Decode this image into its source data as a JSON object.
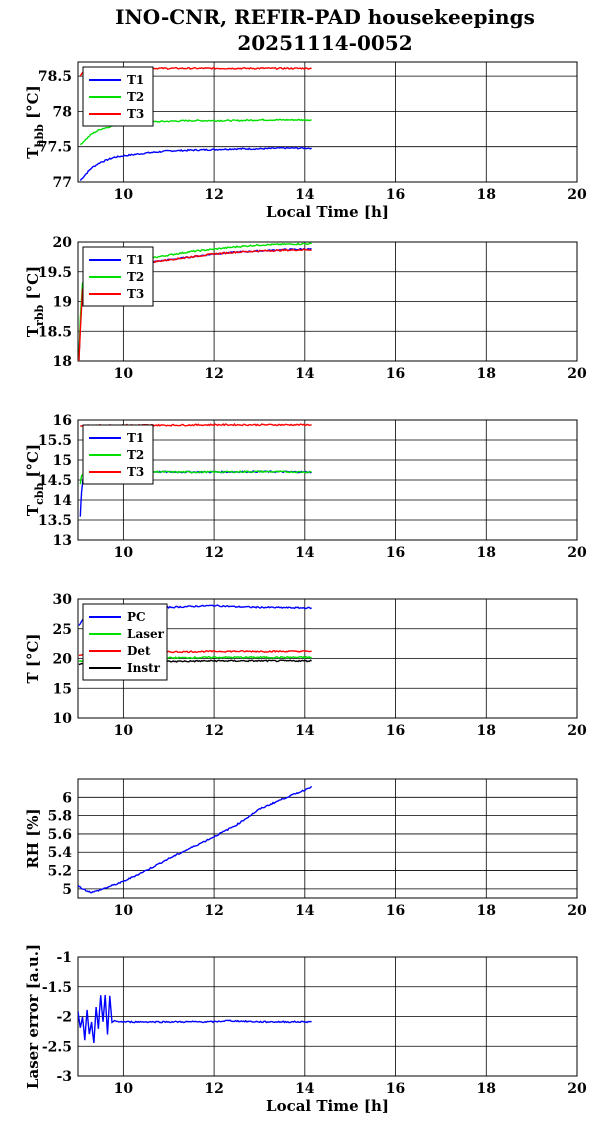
{
  "title_line1": "INO-CNR, REFIR-PAD housekeepings",
  "title_line2": "20251114-0052",
  "colors": {
    "T1": "#0000ff",
    "T2": "#00e000",
    "T3": "#ff0000",
    "PC": "#0000ff",
    "Laser": "#00e000",
    "Det": "#ff0000",
    "Instr": "#000000",
    "grid": "#000000"
  },
  "chart_data": [
    {
      "type": "line",
      "ylabel": "T_hbb [°C]",
      "ylabel_main": "T",
      "ylabel_sub": "hbb",
      "ylabel_unit": "[°C]",
      "xlabel": "Local Time [h]",
      "xlim": [
        9,
        20
      ],
      "ylim": [
        77,
        78.7
      ],
      "xticks": [
        "10",
        "12",
        "14",
        "16",
        "18",
        "20"
      ],
      "yticks": [
        "77",
        "77.5",
        "78",
        "78.5"
      ],
      "legend": "top-left",
      "series": [
        {
          "name": "T1",
          "x": [
            9.05,
            9.1,
            9.3,
            9.5,
            9.8,
            10,
            10.5,
            11,
            11.5,
            12,
            12.5,
            13,
            13.5,
            14,
            14.15
          ],
          "y": [
            77.02,
            77.06,
            77.2,
            77.28,
            77.35,
            77.37,
            77.41,
            77.44,
            77.45,
            77.46,
            77.47,
            77.47,
            77.48,
            77.48,
            77.48
          ]
        },
        {
          "name": "T2",
          "x": [
            9.05,
            9.1,
            9.3,
            9.5,
            9.8,
            10,
            10.5,
            11,
            11.5,
            12,
            12.5,
            13,
            13.5,
            14,
            14.15
          ],
          "y": [
            77.52,
            77.56,
            77.68,
            77.75,
            77.8,
            77.82,
            77.85,
            77.86,
            77.87,
            77.87,
            77.87,
            77.88,
            77.88,
            77.88,
            77.88
          ]
        },
        {
          "name": "T3",
          "x": [
            9.05,
            9.1,
            9.3,
            9.5,
            9.8,
            10,
            10.5,
            11,
            11.5,
            12,
            12.5,
            13,
            13.5,
            14,
            14.15
          ],
          "y": [
            78.5,
            78.56,
            78.58,
            78.59,
            78.6,
            78.6,
            78.61,
            78.61,
            78.61,
            78.61,
            78.61,
            78.61,
            78.61,
            78.61,
            78.61
          ]
        }
      ]
    },
    {
      "type": "line",
      "ylabel": "T_rbb [°C]",
      "ylabel_main": "T",
      "ylabel_sub": "rbb",
      "ylabel_unit": "[°C]",
      "xlabel": "",
      "xlim": [
        9,
        20
      ],
      "ylim": [
        18,
        20
      ],
      "xticks": [
        "10",
        "12",
        "14",
        "16",
        "18",
        "20"
      ],
      "yticks": [
        "18",
        "18.5",
        "19",
        "19.5",
        "20"
      ],
      "legend": "top-left",
      "series": [
        {
          "name": "T1",
          "x": [
            9.02,
            9.05,
            9.1,
            9.2,
            9.4,
            9.6,
            10,
            10.5,
            11,
            11.5,
            12,
            12.5,
            13,
            13.5,
            14,
            14.15
          ],
          "y": [
            18.0,
            18.6,
            19.2,
            19.4,
            19.5,
            19.55,
            19.6,
            19.65,
            19.7,
            19.75,
            19.8,
            19.83,
            19.85,
            19.87,
            19.88,
            19.88
          ]
        },
        {
          "name": "T2",
          "x": [
            9.02,
            9.05,
            9.1,
            9.2,
            9.4,
            9.6,
            10,
            10.5,
            11,
            11.5,
            12,
            12.5,
            13,
            13.5,
            14,
            14.15
          ],
          "y": [
            18.0,
            18.7,
            19.3,
            19.45,
            19.55,
            19.6,
            19.65,
            19.72,
            19.78,
            19.84,
            19.88,
            19.92,
            19.95,
            19.96,
            19.97,
            19.97
          ]
        },
        {
          "name": "T3",
          "x": [
            9.02,
            9.05,
            9.1,
            9.2,
            9.4,
            9.6,
            10,
            10.5,
            11,
            11.5,
            12,
            12.5,
            13,
            13.5,
            14,
            14.15
          ],
          "y": [
            18.0,
            18.5,
            19.2,
            19.4,
            19.5,
            19.55,
            19.6,
            19.65,
            19.7,
            19.75,
            19.8,
            19.83,
            19.85,
            19.86,
            19.87,
            19.87
          ]
        }
      ]
    },
    {
      "type": "line",
      "ylabel": "T_cbb [°C]",
      "ylabel_main": "T",
      "ylabel_sub": "cbb",
      "ylabel_unit": "[°C]",
      "xlabel": "",
      "xlim": [
        9,
        20
      ],
      "ylim": [
        13,
        16
      ],
      "xticks": [
        "10",
        "12",
        "14",
        "16",
        "18",
        "20"
      ],
      "yticks": [
        "13",
        "13.5",
        "14",
        "14.5",
        "15",
        "15.5",
        "16"
      ],
      "legend": "top-left",
      "series": [
        {
          "name": "T1",
          "x": [
            9.05,
            9.08,
            9.12,
            9.2,
            9.4,
            10,
            11,
            12,
            13,
            14,
            14.15
          ],
          "y": [
            13.6,
            14.2,
            14.6,
            14.65,
            14.7,
            14.72,
            14.7,
            14.7,
            14.71,
            14.7,
            14.7
          ]
        },
        {
          "name": "T2",
          "x": [
            9.05,
            9.08,
            9.12,
            9.2,
            9.4,
            10,
            11,
            12,
            13,
            14,
            14.15
          ],
          "y": [
            14.4,
            14.6,
            14.68,
            14.7,
            14.71,
            14.72,
            14.7,
            14.7,
            14.71,
            14.7,
            14.7
          ]
        },
        {
          "name": "T3",
          "x": [
            9.05,
            9.1,
            9.3,
            10,
            11,
            12,
            13,
            14,
            14.15
          ],
          "y": [
            15.85,
            15.86,
            15.86,
            15.87,
            15.87,
            15.88,
            15.88,
            15.88,
            15.88
          ]
        }
      ]
    },
    {
      "type": "line",
      "ylabel": "T [°C]",
      "ylabel_main": "T",
      "ylabel_sub": "",
      "ylabel_unit": "[°C]",
      "xlabel": "",
      "xlim": [
        9,
        20
      ],
      "ylim": [
        10,
        30
      ],
      "xticks": [
        "10",
        "12",
        "14",
        "16",
        "18",
        "20"
      ],
      "yticks": [
        "10",
        "15",
        "20",
        "25",
        "30"
      ],
      "legend": "top-left",
      "series": [
        {
          "name": "PC",
          "x": [
            9.02,
            9.2,
            9.5,
            10,
            11,
            12,
            12.5,
            13,
            14,
            14.15
          ],
          "y": [
            25.5,
            27.5,
            28.2,
            28.5,
            28.6,
            28.9,
            28.7,
            28.6,
            28.5,
            28.5
          ]
        },
        {
          "name": "Laser",
          "x": [
            9.02,
            9.3,
            10,
            11,
            12,
            13,
            14,
            14.15
          ],
          "y": [
            19.5,
            19.8,
            20.0,
            20.1,
            20.2,
            20.2,
            20.2,
            20.2
          ]
        },
        {
          "name": "Det",
          "x": [
            9.02,
            9.3,
            10,
            11,
            12,
            13,
            14,
            14.15
          ],
          "y": [
            20.5,
            20.8,
            21.0,
            21.1,
            21.2,
            21.2,
            21.2,
            21.2
          ]
        },
        {
          "name": "Instr",
          "x": [
            9.02,
            9.3,
            10,
            11,
            12,
            13,
            14,
            14.15
          ],
          "y": [
            19.0,
            19.2,
            19.4,
            19.5,
            19.6,
            19.6,
            19.6,
            19.6
          ]
        }
      ]
    },
    {
      "type": "line",
      "ylabel": "RH [%]",
      "ylabel_main": "RH",
      "ylabel_sub": "",
      "ylabel_unit": "[%]",
      "xlabel": "",
      "xlim": [
        9,
        20
      ],
      "ylim": [
        4.9,
        6.2
      ],
      "xticks": [
        "10",
        "12",
        "14",
        "16",
        "18",
        "20"
      ],
      "yticks": [
        "5",
        "5.2",
        "5.4",
        "5.6",
        "5.8",
        "6"
      ],
      "legend": "none",
      "series": [
        {
          "name": "",
          "x": [
            9.0,
            9.1,
            9.3,
            9.5,
            10,
            10.5,
            11,
            11.5,
            12,
            12.5,
            13,
            13.5,
            14,
            14.15
          ],
          "y": [
            5.04,
            5.0,
            4.96,
            4.99,
            5.08,
            5.2,
            5.33,
            5.45,
            5.57,
            5.7,
            5.87,
            5.98,
            6.08,
            6.12
          ]
        }
      ]
    },
    {
      "type": "line",
      "ylabel": "Laser error [a.u.]",
      "ylabel_main": "Laser error",
      "ylabel_sub": "",
      "ylabel_unit": "[a.u.]",
      "xlabel": "Local Time [h]",
      "xlim": [
        9,
        20
      ],
      "ylim": [
        -3,
        -1
      ],
      "xticks": [
        "10",
        "12",
        "14",
        "16",
        "18",
        "20"
      ],
      "yticks": [
        "-1",
        "-1.5",
        "-2",
        "-2.5",
        "-3"
      ],
      "legend": "none",
      "series": [
        {
          "name": "",
          "x": [
            9.0,
            9.05,
            9.1,
            9.15,
            9.2,
            9.25,
            9.3,
            9.35,
            9.4,
            9.45,
            9.5,
            9.55,
            9.6,
            9.65,
            9.7,
            9.75,
            9.8,
            10,
            11,
            12,
            12.3,
            13,
            14,
            14.15
          ],
          "y": [
            -1.9,
            -2.2,
            -2.0,
            -2.4,
            -1.9,
            -2.3,
            -2.1,
            -2.45,
            -1.85,
            -2.2,
            -1.65,
            -2.1,
            -1.65,
            -2.3,
            -1.65,
            -2.1,
            -2.08,
            -2.09,
            -2.09,
            -2.09,
            -2.07,
            -2.09,
            -2.09,
            -2.09
          ]
        }
      ]
    }
  ]
}
